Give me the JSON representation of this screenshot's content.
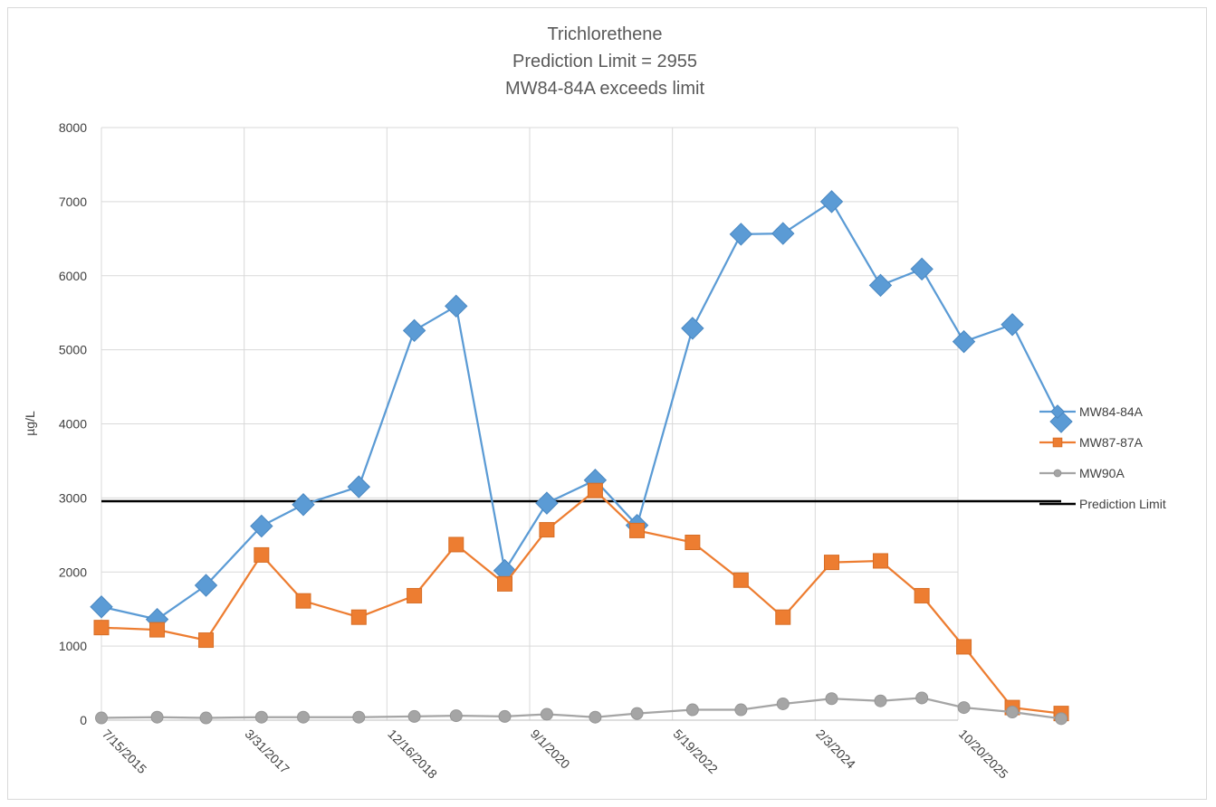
{
  "chart_data": {
    "type": "line",
    "title_lines": [
      "Trichlorethene",
      "Prediction Limit = 2955",
      "MW84-84A exceeds limit"
    ],
    "ylabel": "µg/L",
    "xlabel": "",
    "ylim": [
      0,
      8000
    ],
    "y_ticks": [
      0,
      1000,
      2000,
      3000,
      4000,
      5000,
      6000,
      7000,
      8000
    ],
    "xlim": [
      "7/15/2015",
      "10/20/2025"
    ],
    "x_ticks": [
      "7/15/2015",
      "3/31/2017",
      "12/16/2018",
      "9/1/2020",
      "5/19/2022",
      "2/3/2024",
      "10/20/2025"
    ],
    "grid": true,
    "legend_position": "right",
    "series": [
      {
        "name": "MW84-84A",
        "color": "#5B9BD5",
        "marker": "diamond",
        "points": [
          [
            "7/15/2015",
            1530
          ],
          [
            "3/15/2016",
            1360
          ],
          [
            "10/15/2016",
            1820
          ],
          [
            "6/15/2017",
            2620
          ],
          [
            "12/15/2017",
            2910
          ],
          [
            "8/15/2018",
            3150
          ],
          [
            "4/15/2019",
            5260
          ],
          [
            "10/15/2019",
            5590
          ],
          [
            "5/15/2020",
            2020
          ],
          [
            "11/15/2020",
            2930
          ],
          [
            "6/15/2021",
            3240
          ],
          [
            "12/15/2021",
            2630
          ],
          [
            "8/15/2022",
            5290
          ],
          [
            "3/15/2023",
            6560
          ],
          [
            "9/15/2023",
            6570
          ],
          [
            "4/15/2024",
            7000
          ],
          [
            "11/15/2024",
            5870
          ],
          [
            "5/15/2025",
            6090
          ],
          [
            "11/15/2025",
            5110
          ],
          [
            "6/15/2026",
            5340
          ],
          [
            "1/15/2027",
            4030
          ]
        ]
      },
      {
        "name": "MW87-87A",
        "color": "#ED7D31",
        "marker": "square",
        "points": [
          [
            "7/15/2015",
            1250
          ],
          [
            "3/15/2016",
            1220
          ],
          [
            "10/15/2016",
            1080
          ],
          [
            "6/15/2017",
            2230
          ],
          [
            "12/15/2017",
            1610
          ],
          [
            "8/15/2018",
            1390
          ],
          [
            "4/15/2019",
            1680
          ],
          [
            "10/15/2019",
            2370
          ],
          [
            "5/15/2020",
            1840
          ],
          [
            "11/15/2020",
            2570
          ],
          [
            "6/15/2021",
            3100
          ],
          [
            "12/15/2021",
            2560
          ],
          [
            "8/15/2022",
            2400
          ],
          [
            "3/15/2023",
            1890
          ],
          [
            "9/15/2023",
            1390
          ],
          [
            "4/15/2024",
            2130
          ],
          [
            "11/15/2024",
            2150
          ],
          [
            "5/15/2025",
            1680
          ],
          [
            "11/15/2025",
            990
          ],
          [
            "6/15/2026",
            170
          ],
          [
            "1/15/2027",
            90
          ]
        ]
      },
      {
        "name": "MW90A",
        "color": "#A5A5A5",
        "marker": "circle",
        "points": [
          [
            "7/15/2015",
            30
          ],
          [
            "3/15/2016",
            40
          ],
          [
            "10/15/2016",
            30
          ],
          [
            "6/15/2017",
            40
          ],
          [
            "12/15/2017",
            40
          ],
          [
            "8/15/2018",
            40
          ],
          [
            "4/15/2019",
            50
          ],
          [
            "10/15/2019",
            60
          ],
          [
            "5/15/2020",
            50
          ],
          [
            "11/15/2020",
            80
          ],
          [
            "6/15/2021",
            40
          ],
          [
            "12/15/2021",
            90
          ],
          [
            "8/15/2022",
            140
          ],
          [
            "3/15/2023",
            140
          ],
          [
            "9/15/2023",
            220
          ],
          [
            "4/15/2024",
            290
          ],
          [
            "11/15/2024",
            260
          ],
          [
            "5/15/2025",
            300
          ],
          [
            "11/15/2025",
            170
          ],
          [
            "6/15/2026",
            110
          ],
          [
            "1/15/2027",
            20
          ]
        ]
      }
    ],
    "reference_line": {
      "name": "Prediction Limit",
      "value": 2955,
      "color": "#000000",
      "x_range": [
        "7/15/2015",
        "1/15/2027"
      ]
    }
  }
}
